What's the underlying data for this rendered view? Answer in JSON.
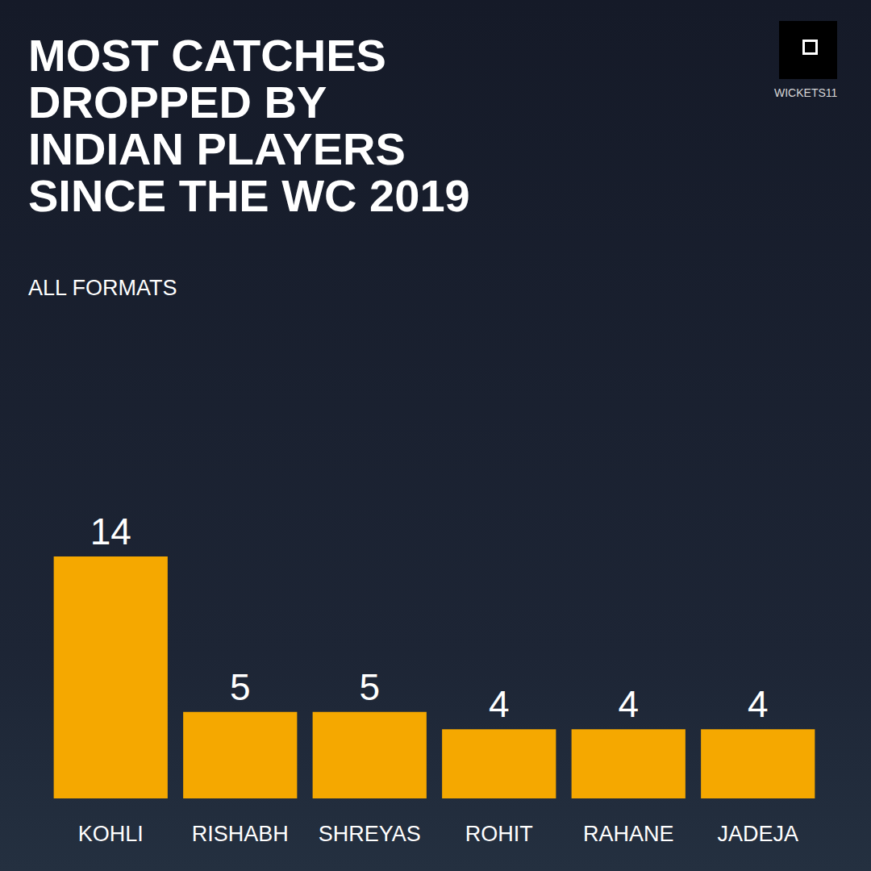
{
  "chart_data": {
    "type": "bar",
    "title": "MOST CATCHES DROPPED BY INDIAN PLAYERS SINCE THE WC 2019",
    "subtitle": "ALL FORMATS",
    "annotations": [
      "WICKETS11"
    ],
    "categories": [
      "KOHLI",
      "RISHABH",
      "SHREYAS",
      "ROHIT",
      "RAHANE",
      "JADEJA"
    ],
    "values": [
      14,
      5,
      5,
      4,
      4,
      4
    ],
    "color": "#f5a800",
    "ylim": [
      0,
      14
    ],
    "yticks": [
      0,
      14
    ],
    "grid": false,
    "data_labels": true,
    "tick_labels": "x"
  }
}
